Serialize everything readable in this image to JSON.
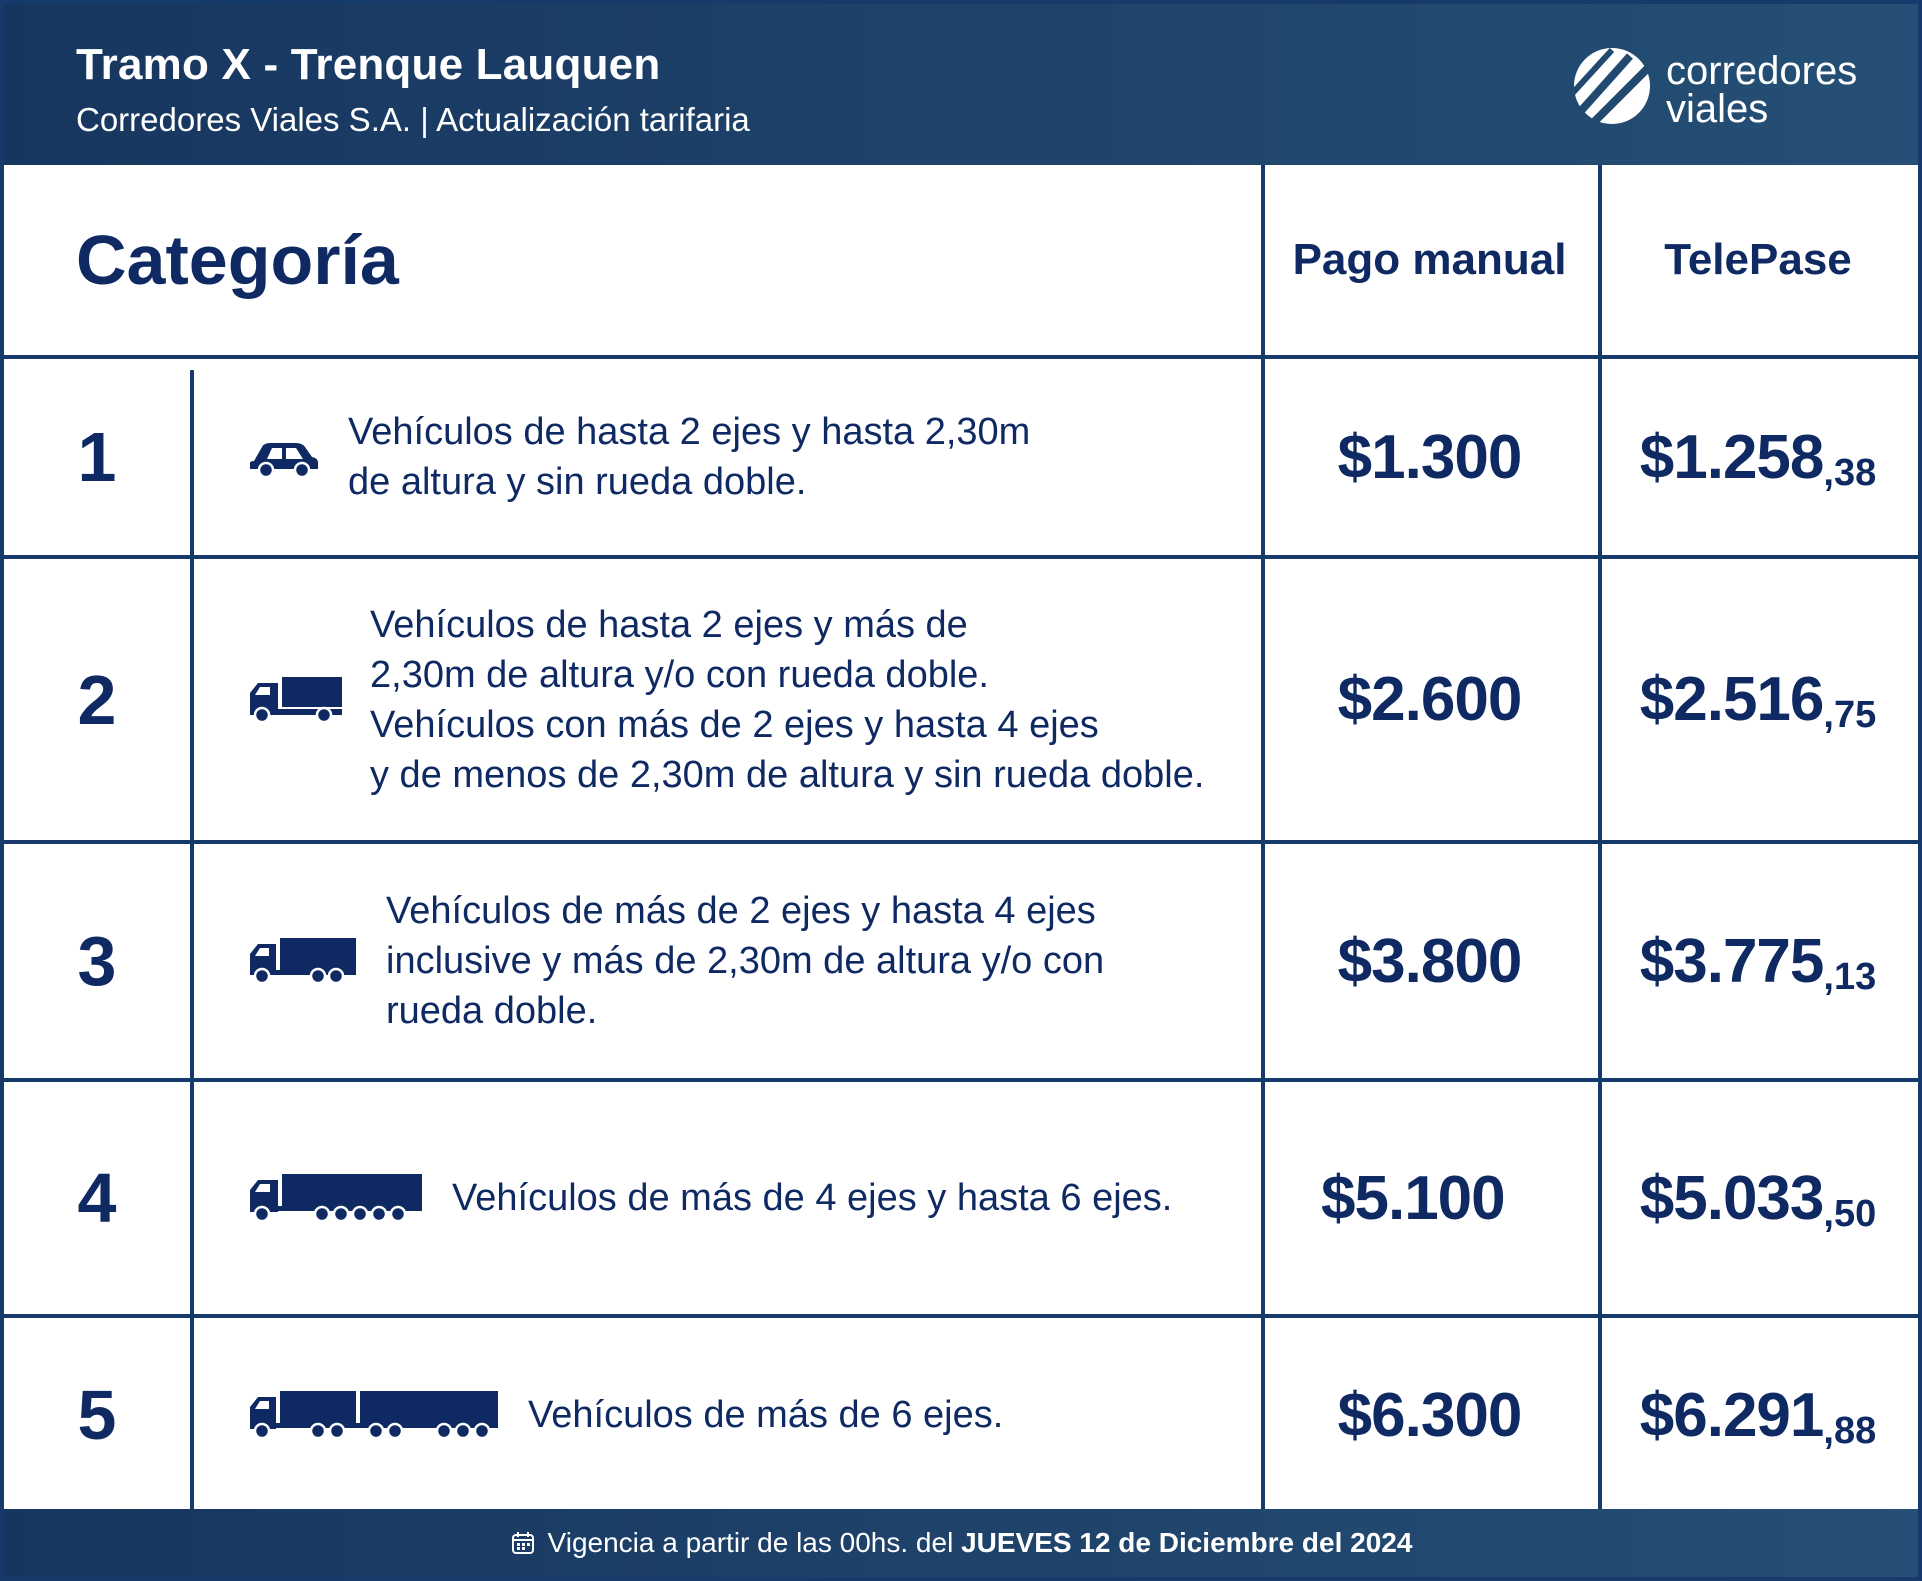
{
  "header": {
    "title": "Tramo X - Trenque Lauquen",
    "subtitle": "Corredores Viales S.A. | Actualización tarifaria",
    "logo_line1": "corredores",
    "logo_line2": "viales"
  },
  "columns": {
    "category": "Categoría",
    "manual": "Pago manual",
    "telepase": "TelePase"
  },
  "rows": [
    {
      "num": "1",
      "icon": "car-icon",
      "desc": "Vehículos de hasta 2 ejes y hasta 2,30m\nde altura y sin rueda doble.",
      "manual": "$1.300",
      "tele_main": "$1.258",
      "tele_cents": ",38"
    },
    {
      "num": "2",
      "icon": "small-truck-icon",
      "desc": "Vehículos de hasta 2 ejes y más de\n2,30m de altura y/o con rueda doble.\nVehículos con más de 2 ejes y hasta 4 ejes\ny de menos de 2,30m de altura y sin rueda doble.",
      "manual": "$2.600",
      "tele_main": "$2.516",
      "tele_cents": ",75"
    },
    {
      "num": "3",
      "icon": "medium-truck-icon",
      "desc": "Vehículos de más de 2 ejes y hasta 4 ejes\ninclusive y más de 2,30m de altura y/o con\nrueda doble.",
      "manual": "$3.800",
      "tele_main": "$3.775",
      "tele_cents": ",13"
    },
    {
      "num": "4",
      "icon": "semi-truck-icon",
      "desc": "Vehículos de más de 4 ejes y hasta 6 ejes.",
      "manual": "$5.100",
      "tele_main": "$5.033",
      "tele_cents": ",50"
    },
    {
      "num": "5",
      "icon": "truck-trailer-icon",
      "desc": "Vehículos de más de 6 ejes.",
      "manual": "$6.300",
      "tele_main": "$6.291",
      "tele_cents": ",88"
    }
  ],
  "footer": {
    "prefix": "Vigencia a partir de las 00hs. del ",
    "bold": "JUEVES 12 de Diciembre del 2024",
    "icon": "calendar-icon"
  },
  "colors": {
    "navy": "#0f2a63",
    "header_bg_start": "#17365f",
    "header_bg_end": "#254f75",
    "border": "#173a6d"
  }
}
